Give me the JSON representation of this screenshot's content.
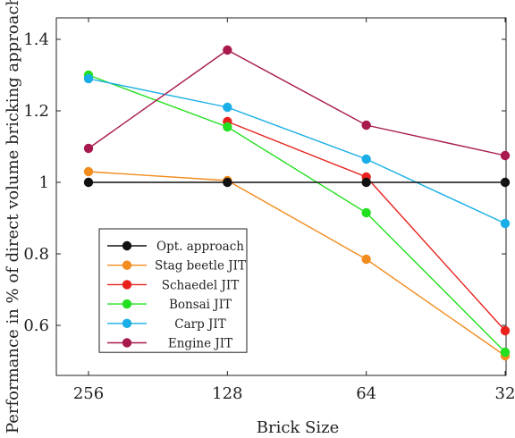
{
  "chart_data": {
    "type": "line",
    "xlabel": "Brick Size",
    "ylabel": "Performance in % of direct volume bricking approach",
    "categories": [
      "256",
      "128",
      "64",
      "32"
    ],
    "ylim": [
      0.46,
      1.46
    ],
    "yticks": [
      0.6,
      0.8,
      1,
      1.2,
      1.4
    ],
    "ytick_labels": [
      "0.6",
      "0.8",
      "1",
      "1.2",
      "1.4"
    ],
    "grid": false,
    "legend_position": "bottom-left",
    "series": [
      {
        "name": "Opt. approach",
        "color": "#111111",
        "values": [
          1.0,
          1.0,
          1.0,
          1.0
        ]
      },
      {
        "name": "Stag beetle JIT",
        "color": "#f28c1e",
        "values": [
          1.03,
          1.005,
          0.785,
          0.515
        ]
      },
      {
        "name": "Schaedel JIT",
        "color": "#e8211c",
        "values": [
          null,
          1.17,
          1.015,
          0.585
        ]
      },
      {
        "name": "Bonsai JIT",
        "color": "#22e01f",
        "values": [
          1.3,
          1.155,
          0.915,
          0.525
        ]
      },
      {
        "name": "Carp JIT",
        "color": "#19aee6",
        "values": [
          1.29,
          1.21,
          1.065,
          0.885
        ]
      },
      {
        "name": "Engine JIT",
        "color": "#a81a4e",
        "values": [
          1.095,
          1.37,
          1.16,
          1.075
        ]
      }
    ]
  }
}
